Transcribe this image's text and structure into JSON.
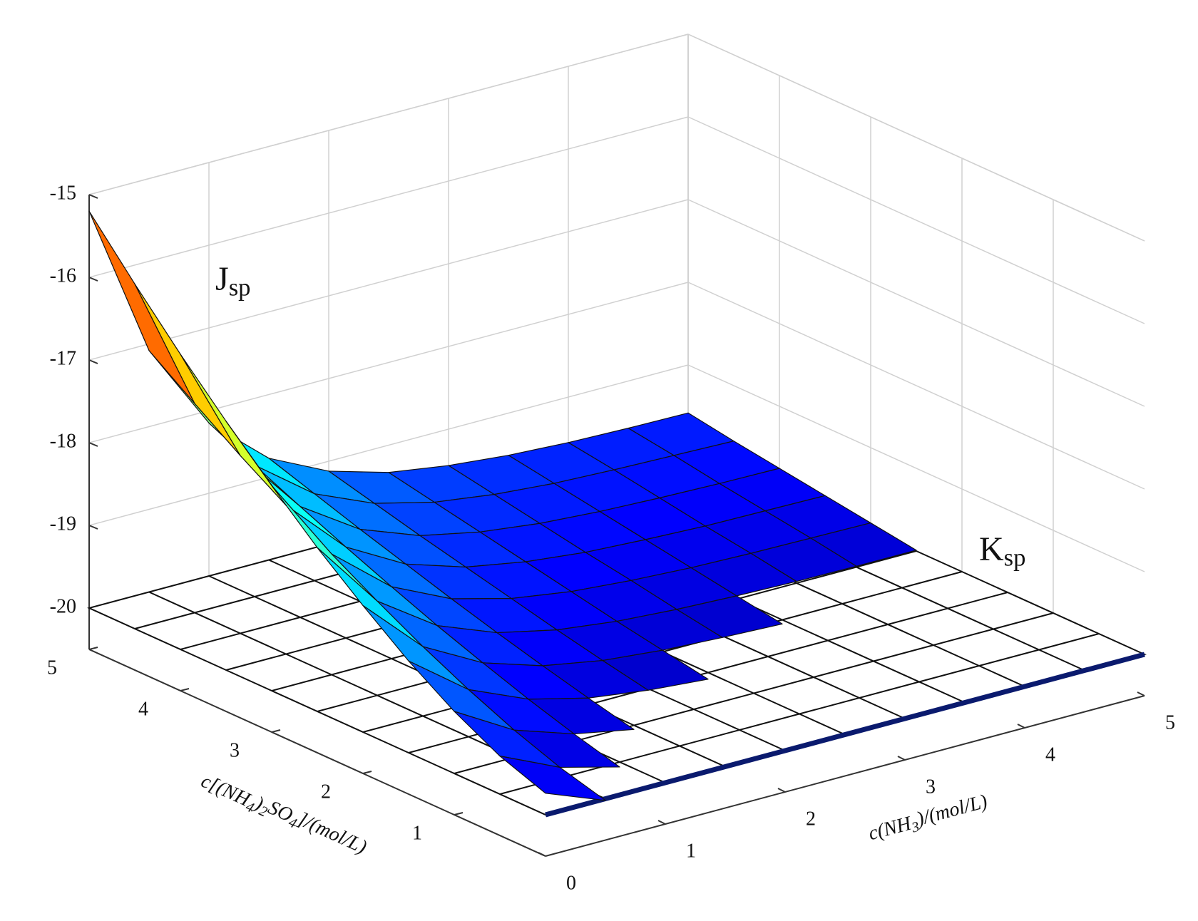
{
  "chart_data": {
    "type": "surface",
    "x_label": [
      "c(NH",
      "3",
      ")/(mol/L)"
    ],
    "y_label": [
      "c[(NH",
      "4",
      ")",
      "2",
      "SO",
      "4",
      "]/(mol/L)"
    ],
    "annotations": [
      [
        "J",
        "sp"
      ],
      [
        "K",
        "sp"
      ]
    ],
    "x": [
      0,
      0.5,
      1,
      1.5,
      2,
      2.5,
      3,
      3.5,
      4,
      4.5,
      5
    ],
    "y": [
      0,
      0.5,
      1,
      1.5,
      2,
      2.5,
      3,
      3.5,
      4,
      4.5,
      5
    ],
    "z": [
      [
        -19.74,
        -20.02,
        -20.18,
        -20.28,
        -20.33,
        -20.36,
        -20.38,
        -20.39,
        -20.39,
        -20.4,
        -20.4
      ],
      [
        -19.54,
        -19.87,
        -20.06,
        -20.17,
        -20.24,
        -20.27,
        -20.29,
        -20.3,
        -20.31,
        -20.31,
        -20.32
      ],
      [
        -19.25,
        -19.67,
        -19.91,
        -20.05,
        -20.13,
        -20.18,
        -20.2,
        -20.22,
        -20.23,
        -20.23,
        -20.24
      ],
      [
        -18.89,
        -19.43,
        -19.74,
        -19.92,
        -20.02,
        -20.08,
        -20.12,
        -20.13,
        -20.15,
        -20.15,
        -20.16
      ],
      [
        -18.47,
        -19.16,
        -19.55,
        -19.78,
        -19.91,
        -19.98,
        -20.02,
        -20.05,
        -20.06,
        -20.07,
        -20.07
      ],
      [
        -18.02,
        -18.86,
        -19.35,
        -19.63,
        -19.79,
        -19.88,
        -19.93,
        -19.96,
        -19.98,
        -19.99,
        -19.99
      ],
      [
        -17.52,
        -18.54,
        -19.13,
        -19.47,
        -19.66,
        -19.77,
        -19.83,
        -19.87,
        -19.89,
        -19.9,
        -19.91
      ],
      [
        -16.99,
        -18.2,
        -18.9,
        -19.3,
        -19.53,
        -19.66,
        -19.74,
        -19.78,
        -19.81,
        -19.82,
        -19.83
      ],
      [
        -16.43,
        -17.85,
        -18.66,
        -19.13,
        -19.4,
        -19.55,
        -19.64,
        -19.69,
        -19.72,
        -19.74,
        -19.75
      ],
      [
        -15.83,
        -17.47,
        -18.41,
        -18.95,
        -19.26,
        -19.44,
        -19.54,
        -19.6,
        -19.63,
        -19.65,
        -19.67
      ],
      [
        -15.2,
        -17.08,
        -18.15,
        -18.77,
        -19.12,
        -19.33,
        -19.44,
        -19.51,
        -19.55,
        -19.57,
        -19.58
      ]
    ],
    "ksp_plane": -20,
    "colormap": "jet",
    "xlim": [
      0,
      5
    ],
    "ylim": [
      0,
      5
    ],
    "zlim": [
      -20.5,
      -15
    ],
    "xticks": [
      0,
      1,
      2,
      3,
      4,
      5
    ],
    "yticks": [
      1,
      2,
      3,
      4,
      5
    ],
    "zticks": [
      -20,
      -19,
      -18,
      -17,
      -16,
      -15
    ],
    "grid": true
  }
}
